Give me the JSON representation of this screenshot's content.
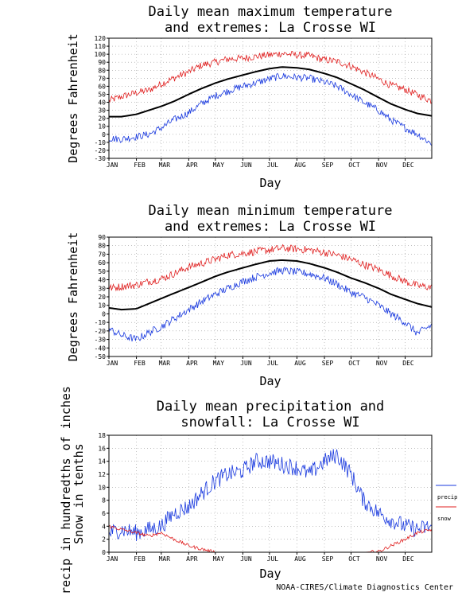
{
  "credit": "NOAA-CIRES/Climate Diagnostics Center",
  "colors": {
    "mean": "#000000",
    "extreme_high": "#e02020",
    "extreme_low": "#1a3adf",
    "precip": "#1a3adf",
    "snow": "#e02020",
    "grid": "#9a9a9a"
  },
  "chart_data": [
    {
      "type": "line",
      "title_lines": [
        "Daily mean maximum temperature",
        "and extremes: La Crosse WI"
      ],
      "xlabel": "Day",
      "ylabel": "Degrees Fahrenheit",
      "xticks": [
        "JAN",
        "FEB",
        "MAR",
        "APR",
        "MAY",
        "JUN",
        "JUL",
        "AUG",
        "SEP",
        "OCT",
        "NOV",
        "DEC"
      ],
      "ylim": [
        -30,
        120
      ],
      "yticks": [
        -30,
        -20,
        -10,
        0,
        10,
        20,
        30,
        40,
        50,
        60,
        70,
        80,
        90,
        100,
        110,
        120
      ],
      "grid": true,
      "x_unit": "day of year",
      "series": [
        {
          "role": "highest",
          "color": "#e02020",
          "x": [
            1,
            15,
            32,
            46,
            60,
            74,
            91,
            105,
            121,
            135,
            152,
            166,
            182,
            196,
            213,
            227,
            244,
            258,
            274,
            288,
            305,
            319,
            335,
            349,
            365
          ],
          "values": [
            42,
            47,
            52,
            55,
            63,
            70,
            78,
            86,
            90,
            94,
            95,
            97,
            99,
            101,
            99,
            98,
            93,
            91,
            85,
            78,
            69,
            61,
            56,
            49,
            42
          ]
        },
        {
          "role": "mean",
          "color": "#000000",
          "x": [
            1,
            15,
            32,
            46,
            60,
            74,
            91,
            105,
            121,
            135,
            152,
            166,
            182,
            196,
            213,
            227,
            244,
            258,
            274,
            288,
            305,
            319,
            335,
            349,
            365
          ],
          "values": [
            22,
            22,
            25,
            30,
            35,
            41,
            50,
            57,
            64,
            69,
            74,
            78,
            82,
            84,
            83,
            81,
            76,
            71,
            63,
            56,
            46,
            38,
            31,
            26,
            23
          ]
        },
        {
          "role": "lowest",
          "color": "#1a3adf",
          "x": [
            1,
            15,
            32,
            46,
            60,
            74,
            91,
            105,
            121,
            135,
            152,
            166,
            182,
            196,
            213,
            227,
            244,
            258,
            274,
            288,
            305,
            319,
            335,
            349,
            365
          ],
          "values": [
            -5,
            -6,
            -3,
            0,
            8,
            18,
            27,
            38,
            48,
            54,
            60,
            64,
            69,
            73,
            71,
            70,
            65,
            60,
            50,
            40,
            30,
            18,
            8,
            0,
            -12
          ]
        }
      ]
    },
    {
      "type": "line",
      "title_lines": [
        "Daily mean minimum temperature",
        "and extremes: La Crosse WI"
      ],
      "xlabel": "Day",
      "ylabel": "Degrees Fahrenheit",
      "xticks": [
        "JAN",
        "FEB",
        "MAR",
        "APR",
        "MAY",
        "JUN",
        "JUL",
        "AUG",
        "SEP",
        "OCT",
        "NOV",
        "DEC"
      ],
      "ylim": [
        -50,
        90
      ],
      "yticks": [
        -50,
        -40,
        -30,
        -20,
        -10,
        0,
        10,
        20,
        30,
        40,
        50,
        60,
        70,
        80,
        90
      ],
      "grid": true,
      "x_unit": "day of year",
      "series": [
        {
          "role": "highest",
          "color": "#e02020",
          "x": [
            1,
            15,
            32,
            46,
            60,
            74,
            91,
            105,
            121,
            135,
            152,
            166,
            182,
            196,
            213,
            227,
            244,
            258,
            274,
            288,
            305,
            319,
            335,
            349,
            365
          ],
          "values": [
            30,
            32,
            34,
            38,
            41,
            47,
            55,
            59,
            64,
            69,
            71,
            73,
            75,
            77,
            76,
            75,
            72,
            69,
            64,
            58,
            52,
            45,
            38,
            33,
            31
          ]
        },
        {
          "role": "mean",
          "color": "#000000",
          "x": [
            1,
            15,
            32,
            46,
            60,
            74,
            91,
            105,
            121,
            135,
            152,
            166,
            182,
            196,
            213,
            227,
            244,
            258,
            274,
            288,
            305,
            319,
            335,
            349,
            365
          ],
          "values": [
            7,
            5,
            6,
            12,
            18,
            24,
            31,
            37,
            44,
            49,
            54,
            58,
            62,
            63,
            62,
            59,
            54,
            49,
            42,
            37,
            30,
            23,
            17,
            12,
            8
          ]
        },
        {
          "role": "lowest",
          "color": "#1a3adf",
          "x": [
            1,
            15,
            32,
            46,
            60,
            74,
            91,
            105,
            121,
            135,
            152,
            166,
            182,
            196,
            213,
            227,
            244,
            258,
            274,
            288,
            305,
            319,
            335,
            349,
            365
          ],
          "values": [
            -18,
            -25,
            -30,
            -22,
            -15,
            -6,
            5,
            14,
            23,
            30,
            38,
            43,
            48,
            51,
            49,
            47,
            42,
            35,
            25,
            20,
            10,
            0,
            -10,
            -23,
            -13
          ]
        }
      ]
    },
    {
      "type": "line",
      "title_lines": [
        "Daily mean precipitation and",
        "snowfall: La Crosse WI"
      ],
      "xlabel": "Day",
      "ylabel_lines": [
        "Precip in hundredths of inches",
        "Snow in tenths"
      ],
      "xticks": [
        "JAN",
        "FEB",
        "MAR",
        "APR",
        "MAY",
        "JUN",
        "JUL",
        "AUG",
        "SEP",
        "OCT",
        "NOV",
        "DEC"
      ],
      "ylim": [
        0,
        18
      ],
      "yticks": [
        0,
        2,
        4,
        6,
        8,
        10,
        12,
        14,
        16,
        18
      ],
      "grid": true,
      "x_unit": "day of year",
      "legend": {
        "placement": "right",
        "entries": [
          "precip",
          "snow"
        ]
      },
      "series": [
        {
          "name": "precip",
          "color": "#1a3adf",
          "x": [
            1,
            15,
            32,
            46,
            60,
            74,
            91,
            105,
            121,
            135,
            152,
            166,
            182,
            196,
            213,
            227,
            244,
            258,
            274,
            288,
            305,
            319,
            335,
            349,
            365
          ],
          "values": [
            3,
            3.5,
            3,
            3.5,
            4,
            6,
            7,
            9,
            11,
            12,
            12.5,
            14,
            14,
            13.5,
            13,
            12,
            14,
            15,
            12,
            8,
            6,
            5,
            4,
            3.5,
            4
          ]
        },
        {
          "name": "snow",
          "color": "#e02020",
          "x": [
            1,
            15,
            32,
            46,
            60,
            74,
            91,
            105,
            121,
            135,
            152,
            166,
            182,
            196,
            213,
            227,
            244,
            258,
            274,
            288,
            305,
            319,
            335,
            349,
            365
          ],
          "values": [
            4,
            3.5,
            3,
            2.5,
            3,
            2,
            1,
            0.5,
            0,
            0,
            0,
            0,
            0,
            0,
            0,
            0,
            0,
            0,
            0,
            0,
            0.1,
            1,
            2,
            3,
            3.5
          ]
        }
      ]
    }
  ]
}
